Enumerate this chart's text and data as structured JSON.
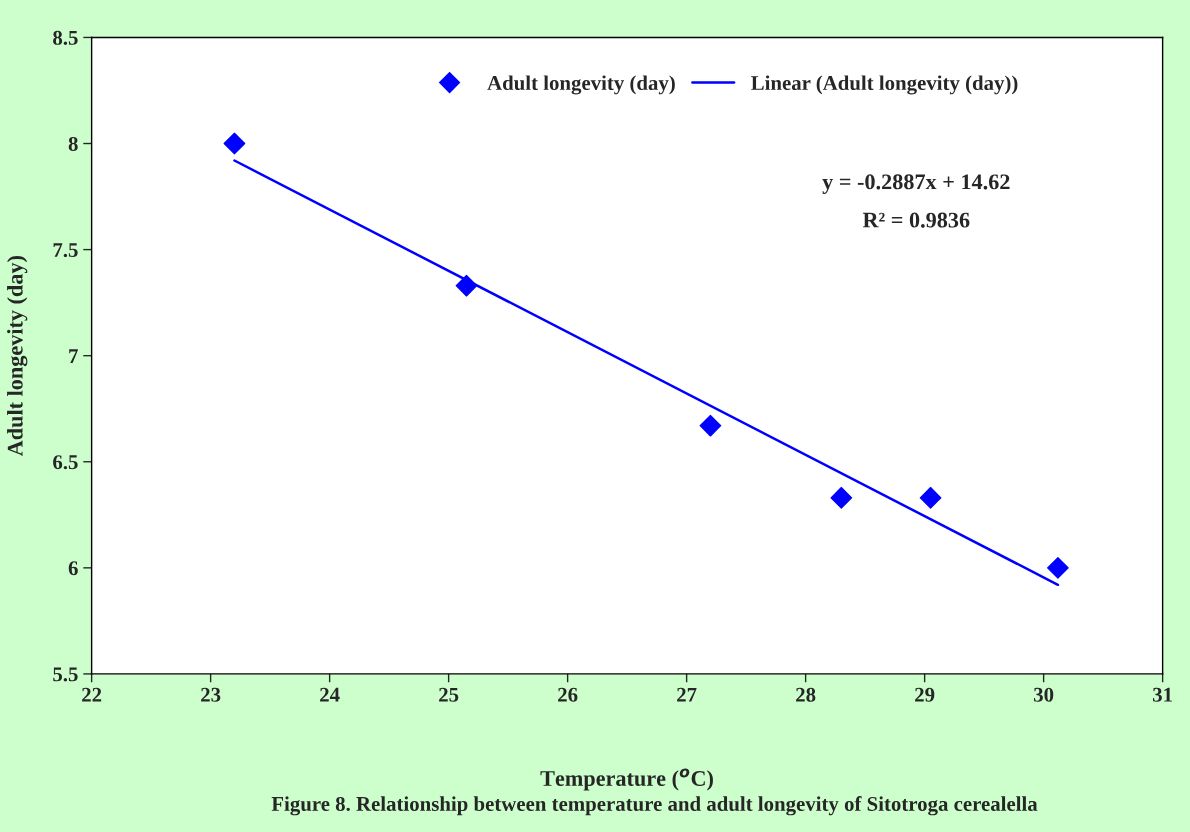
{
  "chart_data": {
    "type": "scatter",
    "xlabel": "Temperature ($^{o}$C)",
    "ylabel": "Adult longevity (day)",
    "series": [
      {
        "name": "Adult longevity (day)",
        "color": "#0000ff",
        "marker": "diamond",
        "x": [
          23.2,
          25.15,
          27.2,
          28.3,
          29.05,
          30.12
        ],
        "values": [
          8.0,
          7.33,
          6.67,
          6.33,
          6.33,
          6.0
        ]
      },
      {
        "name": "Linear (Adult longevity (day))",
        "type": "line",
        "color": "#0000ff",
        "marker": "none",
        "line_style": "solid",
        "x": [
          23.2,
          30.12
        ],
        "values": [
          7.92,
          5.92
        ]
      }
    ],
    "xlim": [
      22,
      31
    ],
    "ylim": [
      5.5,
      8.5
    ],
    "xticks": [
      22,
      23,
      24,
      25,
      26,
      27,
      28,
      29,
      30,
      31
    ],
    "yticks": [
      5.5,
      6,
      6.5,
      7,
      7.5,
      8,
      8.5
    ],
    "grid": false,
    "legend": "top",
    "annotations": [
      "y = -0.2887x + 14.62",
      "R² = 0.9836",
      "Figure 8. Relationship between temperature and adult longevity of Sitotroga cerealella"
    ]
  }
}
